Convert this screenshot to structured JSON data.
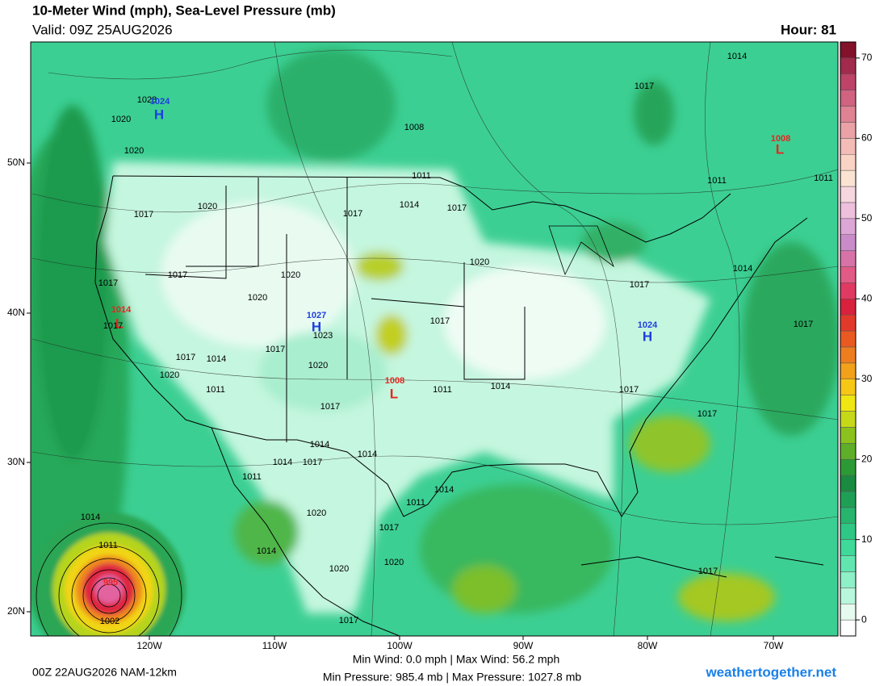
{
  "header": {
    "title": "10-Meter Wind (mph), Sea-Level Pressure (mb)",
    "valid": "Valid: 09Z 25AUG2026",
    "hour": "Hour: 81"
  },
  "map": {
    "lon_labels": [
      "120W",
      "110W",
      "100W",
      "90W",
      "80W",
      "70W"
    ],
    "lat_labels": [
      "50N",
      "40N",
      "30N",
      "20N"
    ],
    "pressure_labels": [
      {
        "text": "1028",
        "color": "#000000"
      },
      {
        "text": "1024",
        "color": "#1f3fe0"
      },
      {
        "text": "H",
        "color": "#1f3fe0"
      },
      {
        "text": "1020",
        "color": "#000000"
      },
      {
        "text": "1020",
        "color": "#000000"
      },
      {
        "text": "1017",
        "color": "#000000"
      },
      {
        "text": "1020",
        "color": "#000000"
      },
      {
        "text": "1017",
        "color": "#000000"
      },
      {
        "text": "1017",
        "color": "#000000"
      },
      {
        "text": "1014",
        "color": "#e8251f"
      },
      {
        "text": "L",
        "color": "#e8251f"
      },
      {
        "text": "1017",
        "color": "#000000"
      },
      {
        "text": "1020",
        "color": "#000000"
      },
      {
        "text": "1020",
        "color": "#000000"
      },
      {
        "text": "1027",
        "color": "#1f3fe0"
      },
      {
        "text": "H",
        "color": "#1f3fe0"
      },
      {
        "text": "1023",
        "color": "#000000"
      },
      {
        "text": "1017",
        "color": "#000000"
      },
      {
        "text": "1017",
        "color": "#000000"
      },
      {
        "text": "1014",
        "color": "#000000"
      },
      {
        "text": "1020",
        "color": "#000000"
      },
      {
        "text": "1011",
        "color": "#000000"
      },
      {
        "text": "1020",
        "color": "#000000"
      },
      {
        "text": "1017",
        "color": "#000000"
      },
      {
        "text": "1008",
        "color": "#e8251f"
      },
      {
        "text": "L",
        "color": "#e8251f"
      },
      {
        "text": "1011",
        "color": "#000000"
      },
      {
        "text": "1014",
        "color": "#000000"
      },
      {
        "text": "1017",
        "color": "#000000"
      },
      {
        "text": "1017",
        "color": "#000000"
      },
      {
        "text": "1014",
        "color": "#000000"
      },
      {
        "text": "1017",
        "color": "#000000"
      },
      {
        "text": "1011",
        "color": "#000000"
      },
      {
        "text": "1008",
        "color": "#000000"
      },
      {
        "text": "1017",
        "color": "#000000"
      },
      {
        "text": "1014",
        "color": "#000000"
      },
      {
        "text": "1008",
        "color": "#e8251f"
      },
      {
        "text": "L",
        "color": "#e8251f"
      },
      {
        "text": "1011",
        "color": "#000000"
      },
      {
        "text": "1011",
        "color": "#000000"
      },
      {
        "text": "1020",
        "color": "#000000"
      },
      {
        "text": "1017",
        "color": "#000000"
      },
      {
        "text": "1014",
        "color": "#000000"
      },
      {
        "text": "1024",
        "color": "#1f3fe0"
      },
      {
        "text": "H",
        "color": "#1f3fe0"
      },
      {
        "text": "1017",
        "color": "#000000"
      },
      {
        "text": "1017",
        "color": "#000000"
      },
      {
        "text": "1017",
        "color": "#000000"
      },
      {
        "text": "1017",
        "color": "#000000"
      },
      {
        "text": "1014",
        "color": "#000000"
      },
      {
        "text": "1014",
        "color": "#000000"
      },
      {
        "text": "1017",
        "color": "#000000"
      },
      {
        "text": "1014",
        "color": "#000000"
      },
      {
        "text": "1011",
        "color": "#000000"
      },
      {
        "text": "1014",
        "color": "#000000"
      },
      {
        "text": "1011",
        "color": "#000000"
      },
      {
        "text": "1020",
        "color": "#000000"
      },
      {
        "text": "1017",
        "color": "#000000"
      },
      {
        "text": "1020",
        "color": "#000000"
      },
      {
        "text": "1014",
        "color": "#000000"
      },
      {
        "text": "1020",
        "color": "#000000"
      },
      {
        "text": "1017",
        "color": "#000000"
      },
      {
        "text": "1014",
        "color": "#000000"
      },
      {
        "text": "1011",
        "color": "#000000"
      },
      {
        "text": "995",
        "color": "#e8251f"
      },
      {
        "text": "1002",
        "color": "#000000"
      }
    ]
  },
  "colorbar": {
    "lim": [
      -2,
      72
    ],
    "ticks": [
      0,
      10,
      20,
      30,
      40,
      50,
      60,
      70
    ],
    "step": 2,
    "colors": [
      "#ffffff",
      "#e6fbf0",
      "#b8f7dc",
      "#8ef0c7",
      "#62e6b0",
      "#3fd999",
      "#2ec884",
      "#27b56e",
      "#1f9f55",
      "#1a8a40",
      "#2c9a34",
      "#5fae2a",
      "#8cc21e",
      "#c6d918",
      "#f0e612",
      "#f7c715",
      "#f2a11a",
      "#ee7d20",
      "#e85a22",
      "#e23a2a",
      "#d8213d",
      "#e03a63",
      "#e25a86",
      "#d873a8",
      "#c98cc9",
      "#dca6d6",
      "#eec0dc",
      "#f6d6df",
      "#fbe3d2",
      "#f9d3c4",
      "#f3bcb6",
      "#eaa2a6",
      "#df8393",
      "#cf6380",
      "#bd4468",
      "#a22a4d",
      "#82112a"
    ]
  },
  "footer": {
    "run": "00Z 22AUG2026 NAM-12km",
    "wind": "Min Wind:  0.0 mph | Max Wind: 56.2 mph",
    "pressure": "Min Pressure: 985.4 mb | Max Pressure: 1027.8 mb",
    "site": "weathertogether.net"
  }
}
